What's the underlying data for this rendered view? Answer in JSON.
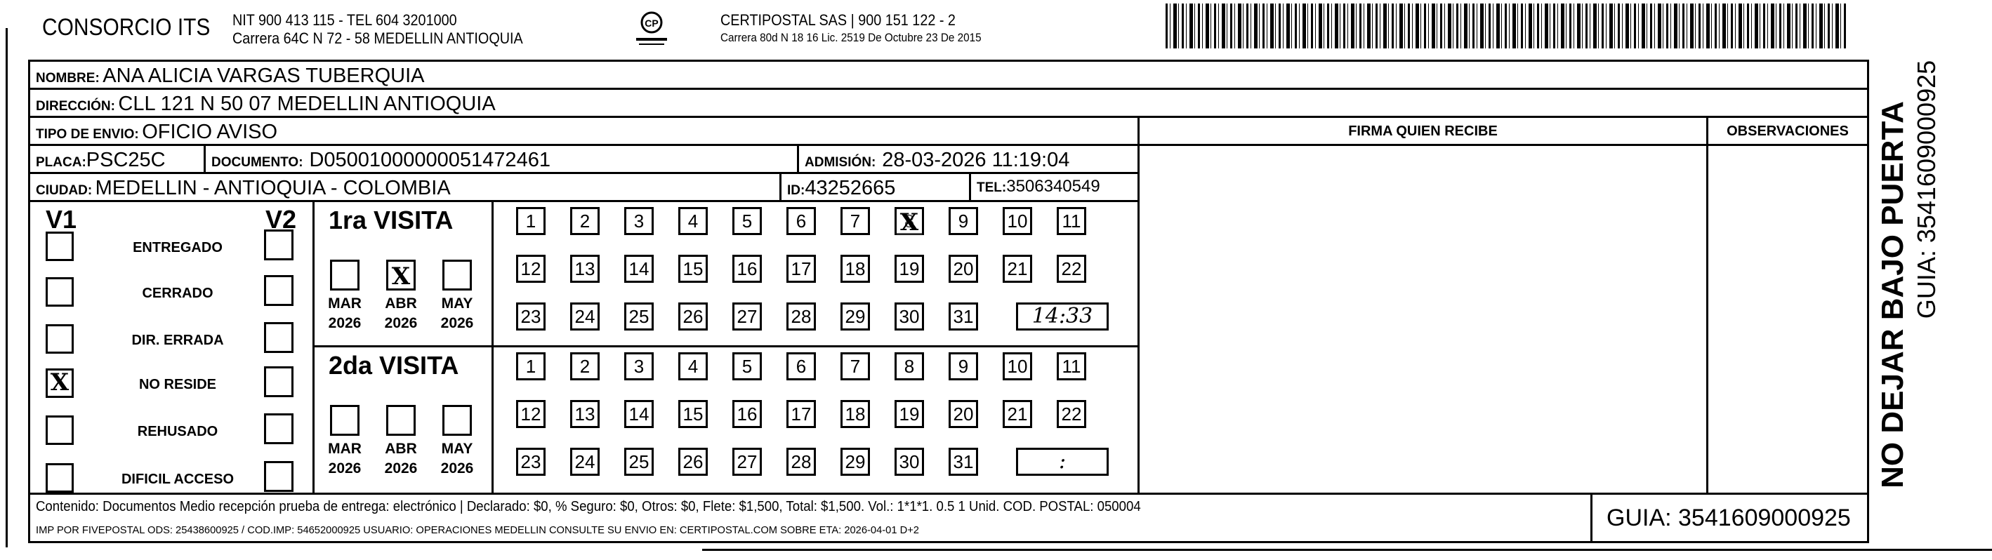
{
  "header": {
    "company": "CONSORCIO ITS",
    "company_line1": "NIT 900 413 115 - TEL 604 3201000",
    "company_line2": "Carrera 64C N 72 - 58 MEDELLIN ANTIOQUIA",
    "logo_text": "CERTIPOSTAL",
    "carrier_line1": "CERTIPOSTAL SAS | 900 151 122 - 2",
    "carrier_line2": "Carrera 80d N 18 16  Lic. 2519 De Octubre 23 De 2015",
    "barcode_icon": "barcode-icon"
  },
  "recipient": {
    "nombre_label": "NOMBRE:",
    "nombre": "ANA ALICIA VARGAS TUBERQUIA",
    "direccion_label": "DIRECCIÓN:",
    "direccion": "CLL 121 N 50 07 MEDELLIN ANTIOQUIA",
    "tipo_label": "TIPO DE ENVIO:",
    "tipo": "OFICIO AVISO",
    "placa_label": "PLACA:",
    "placa": "PSC25C",
    "documento_label": "DOCUMENTO:",
    "documento": "D05001000000051472461",
    "admision_label": "ADMISIÓN:",
    "admision": "28-03-2026 11:19:04",
    "ciudad_label": "CIUDAD:",
    "ciudad": "MEDELLIN - ANTIOQUIA - COLOMBIA",
    "id_label": "ID:",
    "id": "43252665",
    "tel_label": "TEL:",
    "tel": "3506340549"
  },
  "firma_header": "FIRMA QUIEN RECIBE",
  "observaciones_header": "OBSERVACIONES",
  "status": {
    "v1_label": "V1",
    "v2_label": "V2",
    "options": [
      {
        "label": "ENTREGADO",
        "v1": false,
        "v2": false
      },
      {
        "label": "CERRADO",
        "v1": false,
        "v2": false
      },
      {
        "label": "DIR. ERRADA",
        "v1": false,
        "v2": false
      },
      {
        "label": "NO RESIDE",
        "v1": true,
        "v2": false
      },
      {
        "label": "REHUSADO",
        "v1": false,
        "v2": false
      },
      {
        "label": "DIFICIL ACCESO",
        "v1": false,
        "v2": false
      }
    ]
  },
  "visits": [
    {
      "title": "1ra VISITA",
      "months": [
        {
          "label": "MAR",
          "year": "2026",
          "checked": false
        },
        {
          "label": "ABR",
          "year": "2026",
          "checked": true
        },
        {
          "label": "MAY",
          "year": "2026",
          "checked": false
        }
      ],
      "checked_day": 8,
      "time": "14:33"
    },
    {
      "title": "2da VISITA",
      "months": [
        {
          "label": "MAR",
          "year": "2026",
          "checked": false
        },
        {
          "label": "ABR",
          "year": "2026",
          "checked": false
        },
        {
          "label": "MAY",
          "year": "2026",
          "checked": false
        }
      ],
      "checked_day": null,
      "time": ":"
    }
  ],
  "mark_symbol": "X",
  "side": {
    "warning": "NO DEJAR BAJO PUERTA",
    "guia": "GUIA: 3541609000925"
  },
  "footer": {
    "line1": "Contenido: Documentos Medio recepción prueba de entrega: electrónico | Declarado: $0, % Seguro: $0, Otros: $0, Flete: $1,500, Total: $1,500. Vol.: 1*1*1. 0.5  1 Unid. COD. POSTAL: 050004",
    "line2": "IMP POR FIVEPOSTAL ODS: 25438600925 / COD.IMP: 54652000925 USUARIO: OPERACIONES MEDELLIN CONSULTE SU ENVIO EN: CERTIPOSTAL.COM SOBRE ETA: 2026-04-01 D+2",
    "guia": "GUIA: 3541609000925"
  }
}
